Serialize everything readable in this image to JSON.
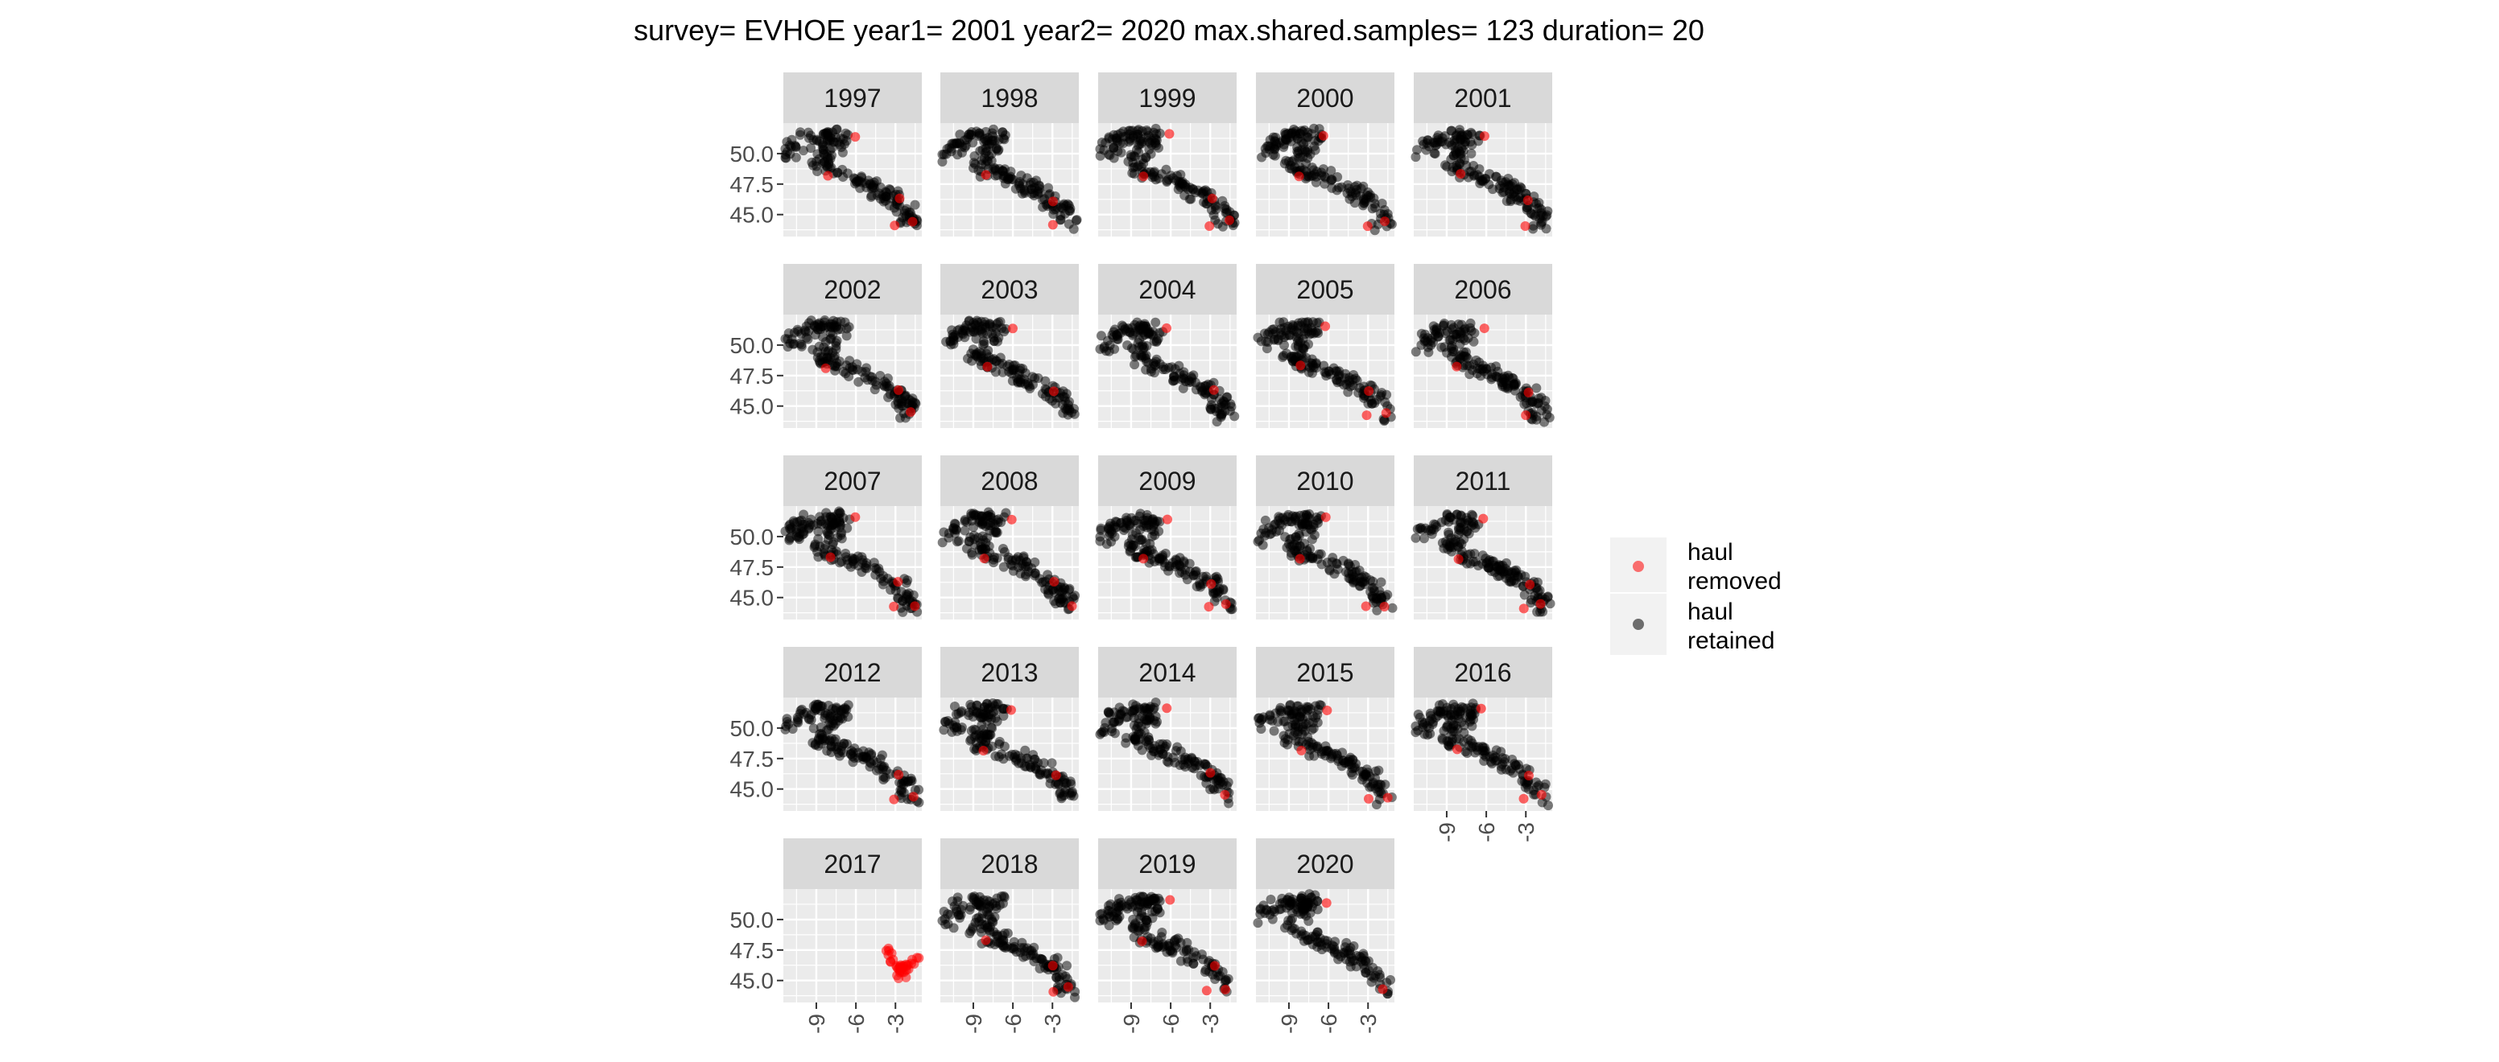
{
  "chart_data": {
    "type": "scatter",
    "title": "survey= EVHOE year1= 2001 year2= 2020 max.shared.samples= 123 duration= 20",
    "xlabel": "",
    "ylabel": "",
    "xlim": [
      -11.5,
      -1.0
    ],
    "ylim": [
      43.2,
      52.5
    ],
    "x_ticks": [
      -9,
      -6,
      -3
    ],
    "x_tick_labels": [
      "-9",
      "-6",
      "-3"
    ],
    "y_ticks": [
      45.0,
      47.5,
      50.0
    ],
    "y_tick_labels": [
      "45.0",
      "47.5",
      "50.0"
    ],
    "grid": true,
    "facet_layout": "wrap, 5 columns",
    "facets": [
      "1997",
      "1998",
      "1999",
      "2000",
      "2001",
      "2002",
      "2003",
      "2004",
      "2005",
      "2006",
      "2007",
      "2008",
      "2009",
      "2010",
      "2011",
      "2012",
      "2013",
      "2014",
      "2015",
      "2016",
      "2017",
      "2018",
      "2019",
      "2020"
    ],
    "legend": {
      "position": "right",
      "entries": [
        {
          "label_line1": "haul",
          "label_line2": "removed",
          "color": "#ff0000"
        },
        {
          "label_line1": "haul",
          "label_line2": "retained",
          "color": "#000000"
        }
      ]
    },
    "removed_hauls_typical": [
      [
        -6.2,
        51.5
      ],
      [
        -8.1,
        48.2
      ],
      [
        -2.8,
        46.2
      ],
      [
        -3.1,
        44.2
      ],
      [
        -1.7,
        44.4
      ]
    ],
    "removed_hauls_2017": [
      [
        -3.2,
        46.4
      ],
      [
        -2.9,
        46.0
      ],
      [
        -2.5,
        45.8
      ],
      [
        -2.0,
        46.2
      ],
      [
        -1.6,
        46.6
      ],
      [
        -3.6,
        47.4
      ],
      [
        -2.6,
        45.5
      ]
    ],
    "colors": {
      "removed": "#ff0000",
      "retained": "#000000",
      "panel_bg": "#ebebeb",
      "strip_bg": "#d9d9d9",
      "grid": "#ffffff"
    }
  }
}
